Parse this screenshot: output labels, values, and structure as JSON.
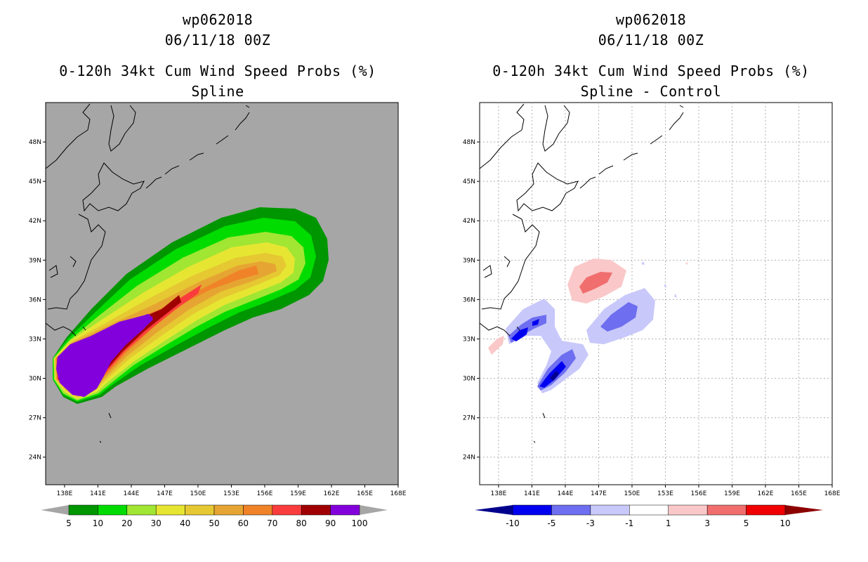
{
  "left": {
    "title_line1": "wp062018",
    "title_line2": "06/11/18 00Z",
    "title_line3": "0-120h 34kt Cum Wind Speed Probs (%)",
    "title_line4": "Spline"
  },
  "right": {
    "title_line1": "wp062018",
    "title_line2": "06/11/18 00Z",
    "title_line3": "0-120h 34kt Cum Wind Speed Probs (%)",
    "title_line4": "Spline - Control"
  },
  "colors": {
    "background_gray": "#a6a6a6",
    "coast": "#000000",
    "grid": "#b0b0b0"
  },
  "chart_data": [
    {
      "type": "heatmap",
      "title": "0-120h 34kt Cum Wind Speed Probs (%) - Spline",
      "xlabel": "",
      "ylabel": "",
      "xlim": [
        136.3,
        168
      ],
      "ylim": [
        21.9,
        51
      ],
      "x_ticks": [
        "138E",
        "141E",
        "144E",
        "147E",
        "150E",
        "153E",
        "156E",
        "159E",
        "162E",
        "165E",
        "168E"
      ],
      "y_ticks": [
        "24N",
        "27N",
        "30N",
        "33N",
        "36N",
        "39N",
        "42N",
        "45N",
        "48N"
      ],
      "colorbar": {
        "labels": [
          "5",
          "10",
          "20",
          "30",
          "40",
          "50",
          "60",
          "70",
          "80",
          "90",
          "100"
        ],
        "colors": [
          "#009600",
          "#00dc00",
          "#a0e632",
          "#e6e632",
          "#e6c832",
          "#e6a532",
          "#f08228",
          "#fa3c3c",
          "#a00000",
          "#8200dc"
        ]
      }
    },
    {
      "type": "heatmap",
      "title": "0-120h 34kt Cum Wind Speed Probs (%) - Spline - Control",
      "xlabel": "",
      "ylabel": "",
      "xlim": [
        136.3,
        168
      ],
      "ylim": [
        21.9,
        51
      ],
      "x_ticks": [
        "138E",
        "141E",
        "144E",
        "147E",
        "150E",
        "153E",
        "156E",
        "159E",
        "162E",
        "165E",
        "168E"
      ],
      "y_ticks": [
        "24N",
        "27N",
        "30N",
        "33N",
        "36N",
        "39N",
        "42N",
        "45N",
        "48N"
      ],
      "colorbar": {
        "labels": [
          "-10",
          "-5",
          "-3",
          "-1",
          "1",
          "3",
          "5",
          "10"
        ],
        "colors": [
          "#00008c",
          "#0000f0",
          "#6e6ef0",
          "#c8c8fa",
          "#ffffff",
          "#fac8c8",
          "#f06e6e",
          "#f00000",
          "#8c0000"
        ]
      }
    }
  ]
}
